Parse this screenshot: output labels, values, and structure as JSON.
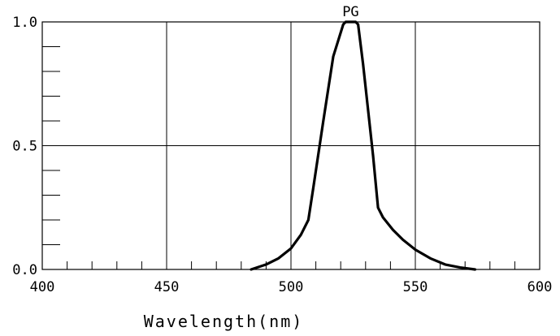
{
  "chart_data": {
    "type": "line",
    "title": "",
    "xlabel": "Wavelength(nm)",
    "ylabel": "",
    "xlim": [
      400,
      600
    ],
    "ylim": [
      0.0,
      1.0
    ],
    "x_ticks": [
      400,
      450,
      500,
      550,
      600
    ],
    "x_tick_labels": [
      "400",
      "450",
      "500",
      "550",
      "600"
    ],
    "y_ticks": [
      0.0,
      0.5,
      1.0
    ],
    "y_tick_labels": [
      "0.0",
      "0.5",
      "1.0"
    ],
    "grid": true,
    "series": [
      {
        "name": "PG",
        "color": "#000000",
        "x": [
          484,
          490,
          495,
          500,
          504,
          507,
          509,
          513,
          517,
          521,
          522,
          524,
          526,
          527,
          529,
          533,
          535,
          537,
          541,
          545,
          550,
          556,
          562,
          568,
          574
        ],
        "y": [
          0.0,
          0.02,
          0.045,
          0.085,
          0.14,
          0.2,
          0.33,
          0.6,
          0.86,
          0.99,
          1.0,
          1.0,
          1.0,
          0.99,
          0.83,
          0.46,
          0.25,
          0.21,
          0.16,
          0.12,
          0.08,
          0.045,
          0.02,
          0.008,
          0.0
        ]
      }
    ]
  }
}
